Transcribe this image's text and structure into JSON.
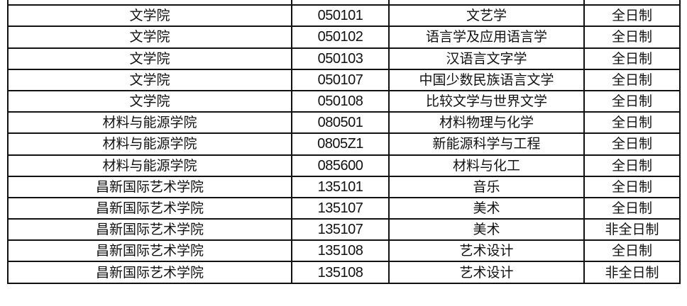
{
  "rows": [
    {
      "college": "",
      "code": "",
      "major": "",
      "mode": ""
    },
    {
      "college": "文学院",
      "code": "050101",
      "major": "文艺学",
      "mode": "全日制"
    },
    {
      "college": "文学院",
      "code": "050102",
      "major": "语言学及应用语言学",
      "mode": "全日制"
    },
    {
      "college": "文学院",
      "code": "050103",
      "major": "汉语言文字学",
      "mode": "全日制"
    },
    {
      "college": "文学院",
      "code": "050107",
      "major": "中国少数民族语言文学",
      "mode": "全日制"
    },
    {
      "college": "文学院",
      "code": "050108",
      "major": "比较文学与世界文学",
      "mode": "全日制"
    },
    {
      "college": "材料与能源学院",
      "code": "080501",
      "major": "材料物理与化学",
      "mode": "全日制"
    },
    {
      "college": "材料与能源学院",
      "code": "0805Z1",
      "major": "新能源科学与工程",
      "mode": "全日制"
    },
    {
      "college": "材料与能源学院",
      "code": "085600",
      "major": "材料与化工",
      "mode": "全日制"
    },
    {
      "college": "昌新国际艺术学院",
      "code": "135101",
      "major": "音乐",
      "mode": "全日制"
    },
    {
      "college": "昌新国际艺术学院",
      "code": "135107",
      "major": "美术",
      "mode": "全日制"
    },
    {
      "college": "昌新国际艺术学院",
      "code": "135107",
      "major": "美术",
      "mode": "非全日制"
    },
    {
      "college": "昌新国际艺术学院",
      "code": "135108",
      "major": "艺术设计",
      "mode": "全日制"
    },
    {
      "college": "昌新国际艺术学院",
      "code": "135108",
      "major": "艺术设计",
      "mode": "非全日制"
    }
  ]
}
